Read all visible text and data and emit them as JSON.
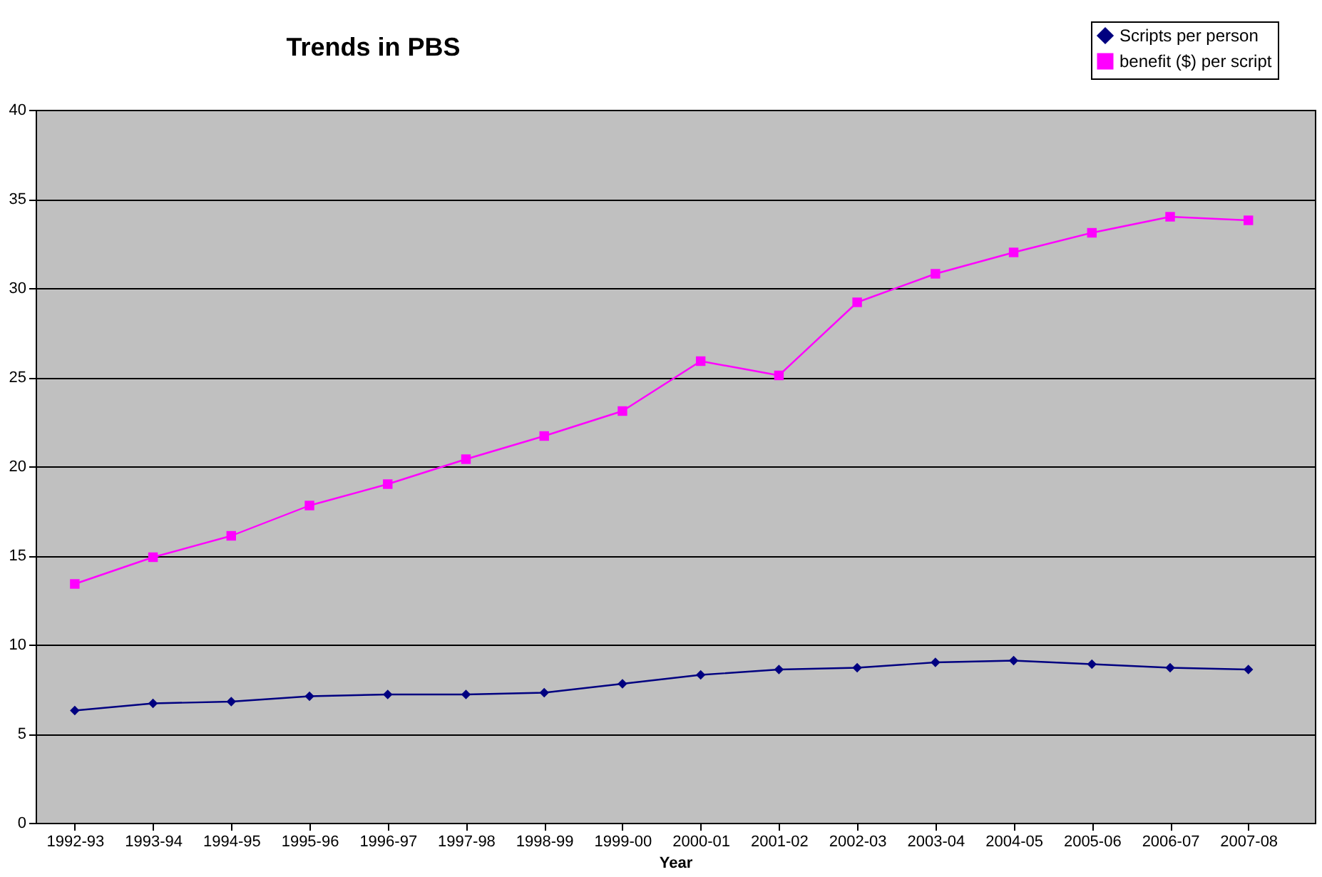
{
  "chart_data": {
    "type": "line",
    "title": "Trends in PBS",
    "xlabel": "Year",
    "categories": [
      "1992-93",
      "1993-94",
      "1994-95",
      "1995-96",
      "1996-97",
      "1997-98",
      "1998-99",
      "1999-00",
      "2000-01",
      "2001-02",
      "2002-03",
      "2003-04",
      "2004-05",
      "2005-06",
      "2006-07",
      "2007-08"
    ],
    "series": [
      {
        "name": "Scripts per person",
        "color": "#000080",
        "marker": "diamond",
        "values": [
          6.3,
          6.7,
          6.8,
          7.1,
          7.2,
          7.2,
          7.3,
          7.8,
          8.3,
          8.6,
          8.7,
          9.0,
          9.1,
          8.9,
          8.7,
          8.6
        ]
      },
      {
        "name": "benefit ($) per script",
        "color": "#ff00ff",
        "marker": "square",
        "values": [
          13.4,
          14.9,
          16.1,
          17.8,
          19.0,
          20.4,
          21.7,
          23.1,
          25.9,
          25.1,
          29.2,
          30.8,
          32.0,
          33.1,
          34.0,
          33.8
        ]
      }
    ],
    "ylim": [
      0,
      40
    ],
    "yticks": [
      0,
      5,
      10,
      15,
      20,
      25,
      30,
      35,
      40
    ],
    "grid": "y",
    "legend": "top right",
    "line_style": "solid"
  }
}
